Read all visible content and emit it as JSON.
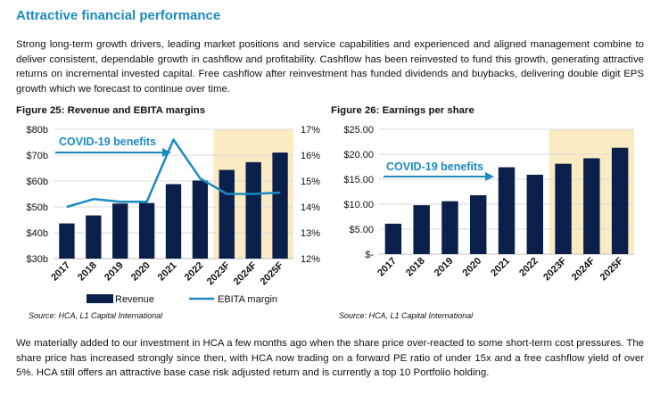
{
  "heading": "Attractive financial performance",
  "intro_paragraph": "Strong long-term growth drivers, leading market positions and service capabilities and experienced and aligned management combine to deliver consistent, dependable growth in cashflow and profitability. Cashflow has been reinvested to fund this growth, generating attractive returns on incremental invested capital. Free cashflow after reinvestment has funded dividends and buybacks, delivering double digit EPS growth which we forecast to continue over time.",
  "closing_paragraph": "We materially added to our investment in HCA a few months ago when the share price over-reacted to some short-term cost pressures. The share price has increased strongly since then, with HCA now trading on a forward PE ratio of under 15x and a free cashflow yield of over 5%. HCA still offers an attractive base case risk adjusted return and is currently a top 10 Portfolio holding.",
  "colors": {
    "heading": "#1b8ac0",
    "bar": "#0b1f4b",
    "line": "#1b8ac0",
    "forecast_shade": "#fbebc3",
    "grid": "#d9d9d9"
  },
  "chart_data": [
    {
      "type": "bar",
      "title": "Figure 25: Revenue and EBITA margins",
      "source": "Source: HCA, L1 Capital International",
      "categories": [
        "2017",
        "2018",
        "2019",
        "2020",
        "2021",
        "2022",
        "2023F",
        "2024F",
        "2025F"
      ],
      "series": [
        {
          "name": "Revenue",
          "type": "bar",
          "axis": "left",
          "values": [
            43.6,
            46.7,
            51.3,
            51.5,
            58.8,
            60.2,
            64.3,
            67.3,
            71.0
          ]
        },
        {
          "name": "EBITA margin",
          "type": "line",
          "axis": "right",
          "values": [
            14.0,
            14.3,
            14.2,
            14.2,
            16.6,
            15.1,
            14.5,
            14.5,
            14.55
          ]
        }
      ],
      "left_axis": {
        "ylim": [
          30,
          80
        ],
        "ticks": [
          "$30b",
          "$40b",
          "$50b",
          "$60b",
          "$70b",
          "$80b"
        ]
      },
      "right_axis": {
        "ylim": [
          12,
          17
        ],
        "ticks": [
          "12%",
          "13%",
          "14%",
          "15%",
          "16%",
          "17%"
        ]
      },
      "forecast_start_category": "2023F",
      "annotation": "COVID-19 benefits",
      "legend": [
        "Revenue",
        "EBITA margin"
      ],
      "legend_position": "bottom"
    },
    {
      "type": "bar",
      "title": "Figure 26: Earnings per share",
      "source": "Source:  HCA, L1 Capital International",
      "categories": [
        "2017",
        "2018",
        "2019",
        "2020",
        "2021",
        "2022",
        "2023F",
        "2024F",
        "2025F"
      ],
      "series": [
        {
          "name": "EPS",
          "type": "bar",
          "axis": "left",
          "values": [
            6.1,
            9.8,
            10.6,
            11.8,
            17.4,
            15.9,
            18.1,
            19.2,
            21.3
          ]
        }
      ],
      "left_axis": {
        "ylim": [
          0,
          25
        ],
        "ticks": [
          "$-",
          "$5.00",
          "$10.00",
          "$15.00",
          "$20.00",
          "$25.00"
        ]
      },
      "forecast_start_category": "2023F",
      "annotation": "COVID-19 benefits"
    }
  ]
}
